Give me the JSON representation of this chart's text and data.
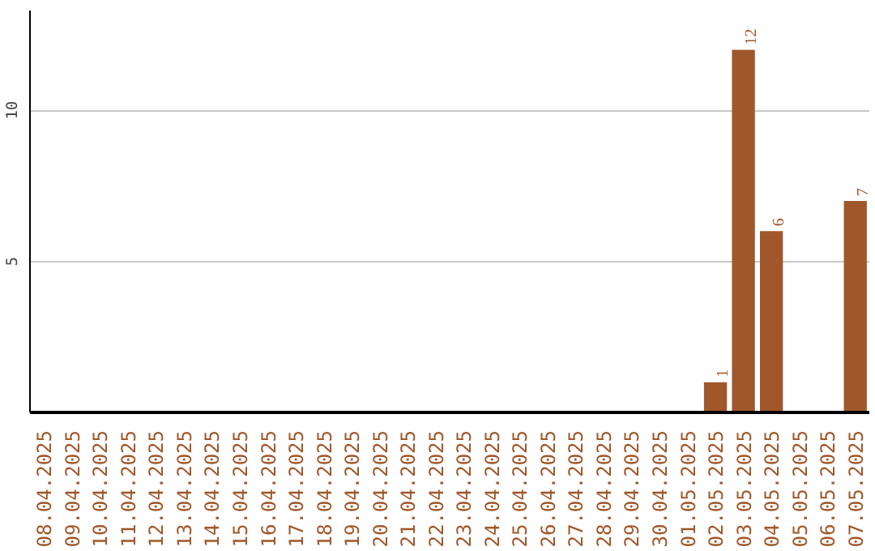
{
  "chart_data": {
    "type": "bar",
    "categories": [
      "08.04.2025",
      "09.04.2025",
      "10.04.2025",
      "11.04.2025",
      "12.04.2025",
      "13.04.2025",
      "14.04.2025",
      "15.04.2025",
      "16.04.2025",
      "17.04.2025",
      "18.04.2025",
      "19.04.2025",
      "20.04.2025",
      "21.04.2025",
      "22.04.2025",
      "23.04.2025",
      "24.04.2025",
      "25.04.2025",
      "26.04.2025",
      "27.04.2025",
      "28.04.2025",
      "29.04.2025",
      "30.04.2025",
      "01.05.2025",
      "02.05.2025",
      "03.05.2025",
      "04.05.2025",
      "05.05.2025",
      "06.05.2025",
      "07.05.2025"
    ],
    "values": [
      0,
      0,
      0,
      0,
      0,
      0,
      0,
      0,
      0,
      0,
      0,
      0,
      0,
      0,
      0,
      0,
      0,
      0,
      0,
      0,
      0,
      0,
      0,
      0,
      1,
      12,
      6,
      0,
      0,
      7
    ],
    "value_labels": [
      null,
      null,
      null,
      null,
      null,
      null,
      null,
      null,
      null,
      null,
      null,
      null,
      null,
      null,
      null,
      null,
      null,
      null,
      null,
      null,
      null,
      null,
      null,
      null,
      "1",
      "12",
      "6",
      null,
      null,
      "7"
    ],
    "color": "#a0572a",
    "ylim": [
      0,
      13.3
    ],
    "yticks": [
      5,
      10
    ],
    "grid": "y"
  }
}
